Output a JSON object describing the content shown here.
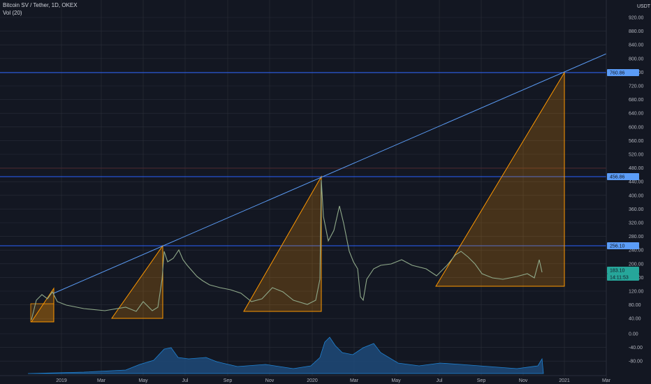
{
  "legend": {
    "symbol": "Bitcoin SV / Tether, 1D, OKEX",
    "volume": "Vol (20)"
  },
  "currency_label": "USDT",
  "price_badges": [
    {
      "text": "760.86",
      "value": 760.86,
      "color": "#5b9cf6"
    },
    {
      "text": "456.86",
      "value": 456.86,
      "color": "#5b9cf6"
    },
    {
      "text": "256.10",
      "value": 256.1,
      "color": "#5b9cf6"
    },
    {
      "text": "183.10",
      "value": 183.1,
      "color": "#26a69a"
    },
    {
      "text": "14:11:53",
      "value": 168.0,
      "color": "#26a69a"
    }
  ],
  "chart_data": {
    "type": "line",
    "title": "Bitcoin SV / Tether, 1D, OKEX",
    "y_axis_price_ticks": [
      "920.00",
      "880.00",
      "840.00",
      "800.00",
      "760.00",
      "720.00",
      "680.00",
      "640.00",
      "600.00",
      "560.00",
      "520.00",
      "480.00",
      "440.00",
      "400.00",
      "360.00",
      "320.00",
      "280.00",
      "240.00",
      "200.00",
      "160.00",
      "120.00",
      "80.00",
      "40.00"
    ],
    "y_axis_volume_ticks": [
      "0.00",
      "-40.00",
      "-80.00"
    ],
    "x_axis_ticks": [
      "2019",
      "Mar",
      "May",
      "Jul",
      "Sep",
      "Nov",
      "2020",
      "Mar",
      "May",
      "Jul",
      "Sep",
      "Nov",
      "2021",
      "Mar"
    ],
    "price_series": {
      "name": "BSV/USDT",
      "x": [
        "2018-11-15",
        "2018-11-20",
        "2018-11-25",
        "2018-12-05",
        "2018-12-20",
        "2019-01-10",
        "2019-02-01",
        "2019-03-01",
        "2019-03-20",
        "2019-04-05",
        "2019-04-15",
        "2019-05-01",
        "2019-05-15",
        "2019-05-28",
        "2019-06-05",
        "2019-06-20",
        "2019-07-01",
        "2019-07-15",
        "2019-08-01",
        "2019-08-20",
        "2019-09-10",
        "2019-09-25",
        "2019-10-10",
        "2019-10-25",
        "2019-11-15",
        "2019-12-01",
        "2019-12-20",
        "2020-01-05",
        "2020-01-12",
        "2020-01-14",
        "2020-01-20",
        "2020-01-30",
        "2020-02-10",
        "2020-02-20",
        "2020-03-01",
        "2020-03-12",
        "2020-03-20",
        "2020-04-05",
        "2020-04-25",
        "2020-05-15",
        "2020-06-01",
        "2020-06-20",
        "2020-07-01",
        "2020-07-15",
        "2020-08-01",
        "2020-08-15",
        "2020-09-01",
        "2020-09-20",
        "2020-10-10",
        "2020-10-30",
        "2020-11-15",
        "2020-11-25",
        "2020-12-01"
      ],
      "y": [
        95,
        120,
        110,
        100,
        85,
        75,
        65,
        60,
        70,
        65,
        80,
        90,
        70,
        60,
        150,
        240,
        200,
        220,
        170,
        140,
        120,
        100,
        90,
        85,
        75,
        70,
        65,
        75,
        105,
        330,
        300,
        400,
        310,
        260,
        200,
        90,
        140,
        180,
        190,
        185,
        175,
        170,
        165,
        200,
        230,
        210,
        175,
        160,
        150,
        160,
        155,
        210,
        183
      ]
    },
    "volume_series": {
      "name": "Vol (20)",
      "note_peaks": [
        "2019-05",
        "2019-07",
        "2020-01",
        "2020-02"
      ]
    },
    "horizontal_levels": [
      760.86,
      456.86,
      256.1
    ],
    "trendline": {
      "from": [
        "2018-11-25",
        120
      ],
      "to": [
        "2020-12-05",
        760.86
      ],
      "extends_right": true
    },
    "triangles": [
      {
        "base_start": "2018-11-15",
        "base_end": "2018-11-28",
        "low": 40,
        "high": 120
      },
      {
        "base_start": "2019-02-15",
        "base_end": "2019-06-01",
        "low": 50,
        "high": 256.1
      },
      {
        "base_start": "2019-09-25",
        "base_end": "2020-01-14",
        "low": 65,
        "high": 456.86
      },
      {
        "base_start": "2020-06-26",
        "base_end": "2020-12-01",
        "low": 130,
        "high": 760.86
      }
    ],
    "grid": true,
    "colors": {
      "background": "#131722",
      "grid": "#2a2e39",
      "level": "#2962ff",
      "triangle": "#ff9800",
      "up": "#26a69a",
      "down": "#ef5350",
      "volume": "#2196f3"
    }
  }
}
